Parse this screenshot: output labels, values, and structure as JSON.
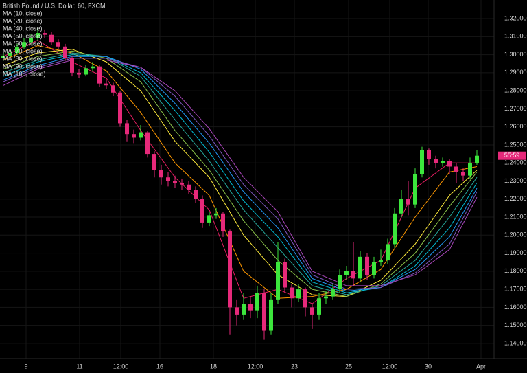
{
  "chart_data": {
    "type": "candlestick",
    "title": "British Pound / U.S. Dollar, 60, FXCM",
    "countdown": "55:59",
    "up_color": "#3ce63c",
    "down_color": "#e6297a",
    "grid": true,
    "grid_color": "#161616",
    "xlim": [
      0,
      72
    ],
    "xticks": [
      {
        "value": 3.8,
        "label": "9"
      },
      {
        "value": 11.6,
        "label": "11"
      },
      {
        "value": 17.6,
        "label": "12:00"
      },
      {
        "value": 23.3,
        "label": "16"
      },
      {
        "value": 31.1,
        "label": "18"
      },
      {
        "value": 37.2,
        "label": "12:00"
      },
      {
        "value": 42.9,
        "label": "23"
      },
      {
        "value": 50.8,
        "label": "25"
      },
      {
        "value": 56.8,
        "label": "12:00"
      },
      {
        "value": 62.4,
        "label": "30"
      },
      {
        "value": 70.1,
        "label": "Apr"
      }
    ],
    "ylim": [
      1.1316,
      1.3303
    ],
    "yticks": [
      {
        "value": 1.14,
        "label": "1.14000"
      },
      {
        "value": 1.15,
        "label": "1.15000"
      },
      {
        "value": 1.16,
        "label": "1.16000"
      },
      {
        "value": 1.17,
        "label": "1.17000"
      },
      {
        "value": 1.18,
        "label": "1.18000"
      },
      {
        "value": 1.19,
        "label": "1.19000"
      },
      {
        "value": 1.2,
        "label": "1.20000"
      },
      {
        "value": 1.21,
        "label": "1.21000"
      },
      {
        "value": 1.22,
        "label": "1.22000"
      },
      {
        "value": 1.23,
        "label": "1.23000"
      },
      {
        "value": 1.24,
        "label": "1.24000"
      },
      {
        "value": 1.25,
        "label": "1.25000"
      },
      {
        "value": 1.26,
        "label": "1.26000"
      },
      {
        "value": 1.27,
        "label": "1.27000"
      },
      {
        "value": 1.28,
        "label": "1.28000"
      },
      {
        "value": 1.29,
        "label": "1.29000"
      },
      {
        "value": 1.3,
        "label": "1.30000"
      },
      {
        "value": 1.31,
        "label": "1.31000"
      },
      {
        "value": 1.32,
        "label": "1.32000"
      }
    ],
    "open": [
      1.298,
      1.2995,
      1.301,
      1.304,
      1.307,
      1.309,
      1.312,
      1.311,
      1.307,
      1.3045,
      1.298,
      1.29,
      1.289,
      1.2925,
      1.2935,
      1.284,
      1.283,
      1.279,
      1.262,
      1.256,
      1.254,
      1.257,
      1.245,
      1.236,
      1.232,
      1.23,
      1.229,
      1.228,
      1.225,
      1.22,
      1.207,
      1.211,
      1.212,
      1.202,
      1.16,
      1.156,
      1.162,
      1.158,
      1.168,
      1.147,
      1.164,
      1.185,
      1.171,
      1.165,
      1.17,
      1.16,
      1.156,
      1.165,
      1.166,
      1.17,
      1.178,
      1.18,
      1.176,
      1.188,
      1.178,
      1.185,
      1.186,
      1.195,
      1.212,
      1.22,
      1.217,
      1.234,
      1.247,
      1.242,
      1.24,
      1.241,
      1.238,
      1.235,
      1.233,
      1.24
    ],
    "high": [
      1.301,
      1.303,
      1.306,
      1.309,
      1.3115,
      1.315,
      1.314,
      1.3125,
      1.3085,
      1.306,
      1.299,
      1.292,
      1.2945,
      1.296,
      1.2945,
      1.286,
      1.2845,
      1.28,
      1.264,
      1.2585,
      1.261,
      1.258,
      1.2465,
      1.239,
      1.235,
      1.233,
      1.231,
      1.23,
      1.227,
      1.222,
      1.213,
      1.215,
      1.213,
      1.203,
      1.164,
      1.168,
      1.166,
      1.172,
      1.17,
      1.168,
      1.196,
      1.187,
      1.173,
      1.173,
      1.171,
      1.162,
      1.168,
      1.169,
      1.173,
      1.181,
      1.183,
      1.196,
      1.191,
      1.19,
      1.188,
      1.192,
      1.198,
      1.215,
      1.225,
      1.23,
      1.237,
      1.249,
      1.248,
      1.244,
      1.243,
      1.242,
      1.24,
      1.237,
      1.243,
      1.247
    ],
    "low": [
      1.2965,
      1.2985,
      1.3,
      1.303,
      1.3055,
      1.308,
      1.309,
      1.3055,
      1.303,
      1.2965,
      1.288,
      1.287,
      1.288,
      1.291,
      1.282,
      1.281,
      1.277,
      1.26,
      1.252,
      1.251,
      1.2525,
      1.243,
      1.232,
      1.228,
      1.227,
      1.226,
      1.225,
      1.223,
      1.218,
      1.204,
      1.205,
      1.209,
      1.199,
      1.145,
      1.15,
      1.153,
      1.154,
      1.154,
      1.142,
      1.145,
      1.162,
      1.168,
      1.16,
      1.163,
      1.155,
      1.148,
      1.153,
      1.162,
      1.164,
      1.168,
      1.175,
      1.172,
      1.174,
      1.175,
      1.176,
      1.183,
      1.184,
      1.193,
      1.21,
      1.211,
      1.215,
      1.232,
      1.239,
      1.237,
      1.238,
      1.234,
      1.229,
      1.23,
      1.231,
      1.239
    ],
    "close": [
      1.2995,
      1.301,
      1.304,
      1.307,
      1.309,
      1.312,
      1.311,
      1.307,
      1.3045,
      1.298,
      1.29,
      1.289,
      1.2925,
      1.2935,
      1.284,
      1.283,
      1.279,
      1.262,
      1.256,
      1.254,
      1.257,
      1.245,
      1.236,
      1.232,
      1.23,
      1.229,
      1.228,
      1.225,
      1.22,
      1.207,
      1.211,
      1.212,
      1.202,
      1.16,
      1.156,
      1.162,
      1.158,
      1.168,
      1.147,
      1.164,
      1.185,
      1.171,
      1.165,
      1.17,
      1.16,
      1.156,
      1.165,
      1.166,
      1.17,
      1.178,
      1.18,
      1.176,
      1.188,
      1.178,
      1.185,
      1.186,
      1.195,
      1.212,
      1.22,
      1.217,
      1.234,
      1.247,
      1.242,
      1.24,
      1.241,
      1.238,
      1.235,
      1.233,
      1.24,
      1.244
    ],
    "ma_x": [
      0,
      5,
      10,
      15,
      20,
      25,
      30,
      35,
      40,
      45,
      50,
      55,
      60,
      65,
      69
    ],
    "series": [
      {
        "name": "MA (10, close)",
        "color": "#e91e63",
        "values": [
          1.299,
          1.308,
          1.296,
          1.287,
          1.258,
          1.232,
          1.214,
          1.165,
          1.17,
          1.162,
          1.176,
          1.186,
          1.226,
          1.24,
          1.24
        ]
      },
      {
        "name": "MA (20, close)",
        "color": "#ff9800",
        "values": [
          1.297,
          1.305,
          1.301,
          1.291,
          1.268,
          1.24,
          1.222,
          1.18,
          1.165,
          1.166,
          1.17,
          1.181,
          1.21,
          1.235,
          1.238
        ]
      },
      {
        "name": "MA (40, close)",
        "color": "#ffeb3b",
        "values": [
          1.294,
          1.301,
          1.303,
          1.296,
          1.28,
          1.252,
          1.232,
          1.2,
          1.178,
          1.167,
          1.166,
          1.175,
          1.195,
          1.222,
          1.236
        ]
      },
      {
        "name": "MA (50, close)",
        "color": "#8bc34a",
        "values": [
          1.292,
          1.299,
          1.302,
          1.298,
          1.285,
          1.258,
          1.236,
          1.208,
          1.186,
          1.17,
          1.166,
          1.173,
          1.19,
          1.216,
          1.235
        ]
      },
      {
        "name": "MA (60, close)",
        "color": "#26a69a",
        "values": [
          1.29,
          1.297,
          1.301,
          1.299,
          1.288,
          1.264,
          1.241,
          1.214,
          1.193,
          1.172,
          1.167,
          1.172,
          1.186,
          1.21,
          1.232
        ]
      },
      {
        "name": "MA (70, close)",
        "color": "#00bcd4",
        "values": [
          1.288,
          1.296,
          1.3,
          1.299,
          1.29,
          1.269,
          1.246,
          1.219,
          1.199,
          1.174,
          1.168,
          1.171,
          1.183,
          1.204,
          1.229
        ]
      },
      {
        "name": "MA (80, close)",
        "color": "#2196f3",
        "values": [
          1.286,
          1.294,
          1.299,
          1.299,
          1.292,
          1.273,
          1.251,
          1.224,
          1.204,
          1.176,
          1.169,
          1.171,
          1.181,
          1.199,
          1.226
        ]
      },
      {
        "name": "MA (90, close)",
        "color": "#7e57c2",
        "values": [
          1.285,
          1.293,
          1.298,
          1.298,
          1.293,
          1.277,
          1.255,
          1.228,
          1.209,
          1.178,
          1.17,
          1.171,
          1.179,
          1.195,
          1.224
        ]
      },
      {
        "name": "MA (100, close)",
        "color": "#ab47bc",
        "values": [
          1.283,
          1.292,
          1.297,
          1.297,
          1.293,
          1.28,
          1.259,
          1.232,
          1.213,
          1.18,
          1.172,
          1.172,
          1.178,
          1.192,
          1.221
        ]
      }
    ]
  }
}
